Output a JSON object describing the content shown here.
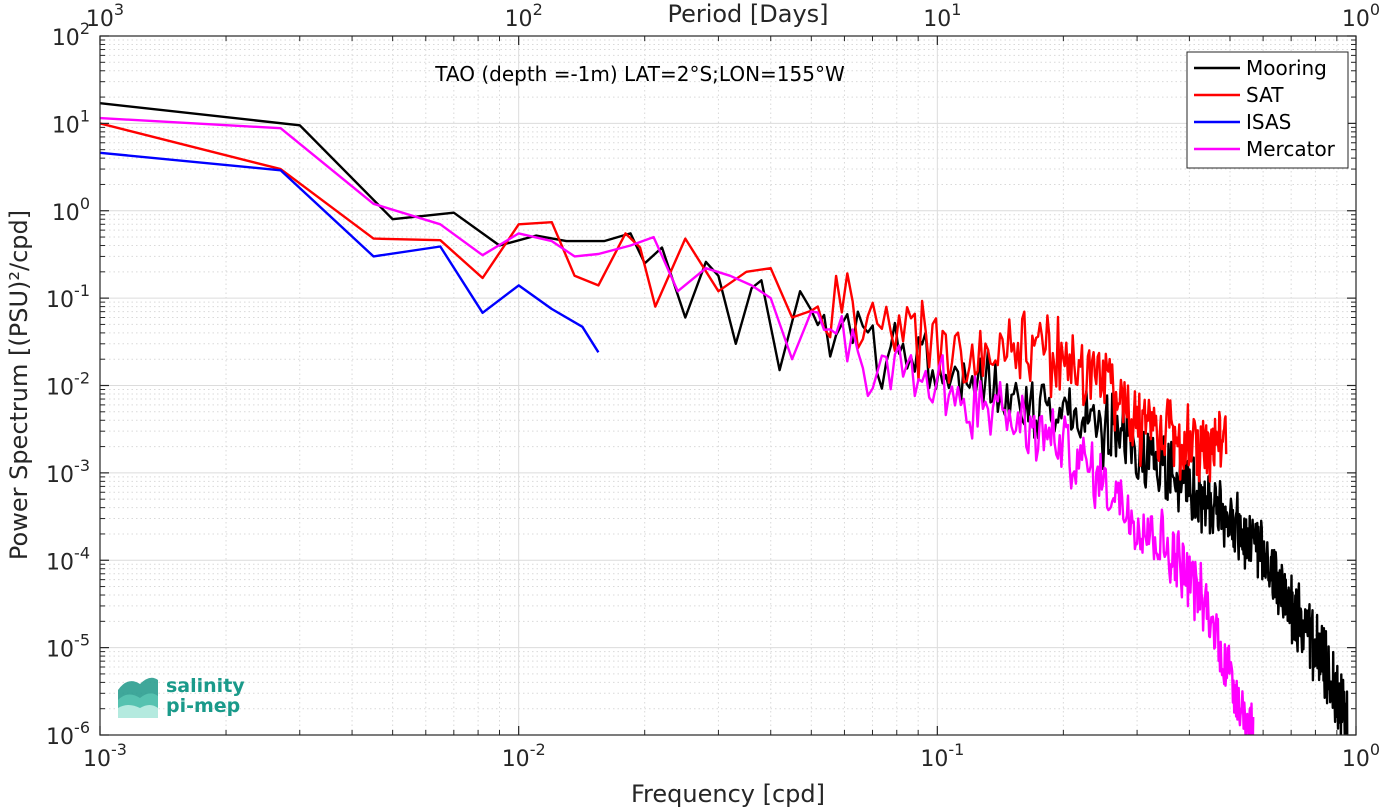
{
  "chart_data": {
    "type": "line",
    "title": "TAO (depth =-1m) LAT=2°S;LON=155°W",
    "xlabel": "Frequency [cpd]",
    "ylabel": "Power Spectrum [(PSU)²/cpd]",
    "top_xlabel": "Period [Days]",
    "x_scale": "log",
    "y_scale": "log",
    "xlim": [
      0.001,
      1
    ],
    "ylim": [
      1e-06,
      100
    ],
    "x_ticks": [
      0.001,
      0.01,
      0.1,
      1
    ],
    "x_tick_labels": [
      {
        "base": "10",
        "exp": "-3"
      },
      {
        "base": "10",
        "exp": "-2"
      },
      {
        "base": "10",
        "exp": "-1"
      },
      {
        "base": "10",
        "exp": "0"
      }
    ],
    "y_ticks": [
      1e-06,
      1e-05,
      0.0001,
      0.001,
      0.01,
      0.1,
      1,
      10,
      100
    ],
    "y_tick_labels": [
      {
        "base": "10",
        "exp": "-6"
      },
      {
        "base": "10",
        "exp": "-5"
      },
      {
        "base": "10",
        "exp": "-4"
      },
      {
        "base": "10",
        "exp": "-3"
      },
      {
        "base": "10",
        "exp": "-2"
      },
      {
        "base": "10",
        "exp": "-1"
      },
      {
        "base": "10",
        "exp": "0"
      },
      {
        "base": "10",
        "exp": "1"
      },
      {
        "base": "10",
        "exp": "2"
      }
    ],
    "top_x_tick_labels": [
      {
        "base": "10",
        "exp": "3"
      },
      {
        "base": "10",
        "exp": "2"
      },
      {
        "base": "10",
        "exp": "1"
      },
      {
        "base": "10",
        "exp": "0"
      }
    ],
    "grid": true,
    "legend_position": "top-right",
    "series": [
      {
        "name": "Mooring",
        "color": "#000000",
        "anchors": [
          [
            0.001,
            17
          ],
          [
            0.003,
            9.5
          ],
          [
            0.005,
            0.8
          ],
          [
            0.007,
            0.95
          ],
          [
            0.009,
            0.4
          ],
          [
            0.011,
            0.52
          ],
          [
            0.013,
            0.45
          ],
          [
            0.016,
            0.45
          ],
          [
            0.0185,
            0.55
          ],
          [
            0.02,
            0.25
          ],
          [
            0.022,
            0.38
          ],
          [
            0.025,
            0.06
          ],
          [
            0.028,
            0.26
          ],
          [
            0.03,
            0.18
          ],
          [
            0.033,
            0.03
          ],
          [
            0.036,
            0.13
          ],
          [
            0.038,
            0.16
          ],
          [
            0.042,
            0.015
          ],
          [
            0.047,
            0.12
          ],
          [
            0.052,
            0.03
          ],
          [
            0.06,
            0.06
          ],
          [
            0.07,
            0.025
          ],
          [
            0.08,
            0.02
          ],
          [
            0.09,
            0.025
          ],
          [
            0.1,
            0.015
          ],
          [
            0.12,
            0.012
          ],
          [
            0.15,
            0.008
          ],
          [
            0.2,
            0.005
          ],
          [
            0.3,
            0.002
          ],
          [
            0.4,
            0.0006
          ],
          [
            0.5,
            0.0003
          ],
          [
            0.6,
            0.0001
          ],
          [
            0.7,
            3e-05
          ],
          [
            0.8,
            1e-05
          ],
          [
            0.9,
            3e-06
          ],
          [
            0.95,
            1.5e-06
          ]
        ],
        "noise": 0.32,
        "x_end": 0.955
      },
      {
        "name": "SAT",
        "color": "#ff0000",
        "anchors": [
          [
            0.001,
            10
          ],
          [
            0.0027,
            3
          ],
          [
            0.0045,
            0.48
          ],
          [
            0.0065,
            0.46
          ],
          [
            0.0082,
            0.17
          ],
          [
            0.01,
            0.7
          ],
          [
            0.012,
            0.74
          ],
          [
            0.0136,
            0.18
          ],
          [
            0.0155,
            0.14
          ],
          [
            0.018,
            0.55
          ],
          [
            0.0195,
            0.38
          ],
          [
            0.0212,
            0.08
          ],
          [
            0.025,
            0.48
          ],
          [
            0.03,
            0.12
          ],
          [
            0.035,
            0.2
          ],
          [
            0.04,
            0.22
          ],
          [
            0.045,
            0.06
          ],
          [
            0.05,
            0.1
          ],
          [
            0.06,
            0.08
          ],
          [
            0.07,
            0.05
          ],
          [
            0.08,
            0.04
          ],
          [
            0.09,
            0.03
          ],
          [
            0.1,
            0.03
          ],
          [
            0.12,
            0.02
          ],
          [
            0.15,
            0.03
          ],
          [
            0.2,
            0.02
          ],
          [
            0.25,
            0.012
          ],
          [
            0.3,
            0.004
          ],
          [
            0.35,
            0.003
          ],
          [
            0.4,
            0.002
          ],
          [
            0.45,
            0.002
          ],
          [
            0.49,
            0.003
          ]
        ],
        "noise": 0.35,
        "x_end": 0.49
      },
      {
        "name": "ISAS",
        "color": "#0000ff",
        "anchors": [
          [
            0.001,
            4.6
          ],
          [
            0.0027,
            2.9
          ],
          [
            0.0045,
            0.3
          ],
          [
            0.0065,
            0.39
          ],
          [
            0.0082,
            0.068
          ],
          [
            0.01,
            0.14
          ],
          [
            0.012,
            0.075
          ],
          [
            0.0142,
            0.047
          ],
          [
            0.0155,
            0.024
          ]
        ],
        "noise": 0,
        "x_end": 0.0155
      },
      {
        "name": "Mercator",
        "color": "#ff00ff",
        "anchors": [
          [
            0.001,
            11.5
          ],
          [
            0.0027,
            8.8
          ],
          [
            0.0045,
            1.2
          ],
          [
            0.0065,
            0.7
          ],
          [
            0.0082,
            0.31
          ],
          [
            0.01,
            0.55
          ],
          [
            0.012,
            0.45
          ],
          [
            0.0136,
            0.3
          ],
          [
            0.0155,
            0.32
          ],
          [
            0.0185,
            0.4
          ],
          [
            0.021,
            0.5
          ],
          [
            0.024,
            0.12
          ],
          [
            0.028,
            0.22
          ],
          [
            0.032,
            0.18
          ],
          [
            0.036,
            0.14
          ],
          [
            0.04,
            0.1
          ],
          [
            0.045,
            0.02
          ],
          [
            0.05,
            0.04
          ],
          [
            0.06,
            0.04
          ],
          [
            0.07,
            0.015
          ],
          [
            0.08,
            0.02
          ],
          [
            0.1,
            0.01
          ],
          [
            0.12,
            0.006
          ],
          [
            0.15,
            0.004
          ],
          [
            0.2,
            0.002
          ],
          [
            0.25,
            0.0008
          ],
          [
            0.3,
            0.0003
          ],
          [
            0.35,
            0.00015
          ],
          [
            0.4,
            7e-05
          ],
          [
            0.45,
            2e-05
          ],
          [
            0.5,
            5e-06
          ],
          [
            0.55,
            1.5e-06
          ],
          [
            0.57,
            1e-06
          ]
        ],
        "noise": 0.3,
        "x_end": 0.57
      }
    ]
  },
  "logo": {
    "line1": "salinity",
    "line2": "pi-mep"
  }
}
